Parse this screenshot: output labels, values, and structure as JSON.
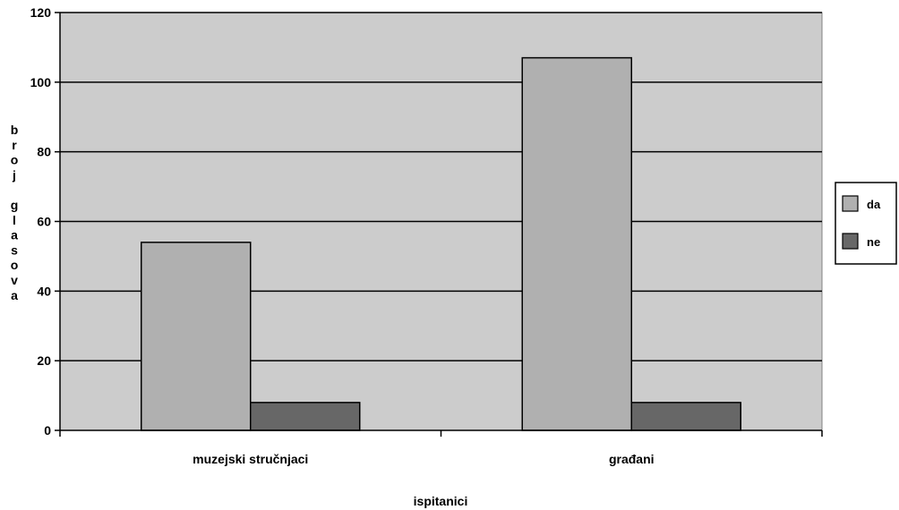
{
  "chart_data": {
    "type": "bar",
    "categories": [
      "muzejski stručnjaci",
      "građani"
    ],
    "series": [
      {
        "name": "da",
        "values": [
          54,
          107
        ],
        "color": "#b0b0b0"
      },
      {
        "name": "ne",
        "values": [
          8,
          8
        ],
        "color": "#676767"
      }
    ],
    "title": "",
    "xlabel": "ispitanici",
    "ylabel": "broj glasova",
    "ylim": [
      0,
      120
    ],
    "yticks": [
      0,
      20,
      40,
      60,
      80,
      100,
      120
    ],
    "grid": true,
    "legend_position": "right",
    "plot_background": "#cccccc"
  }
}
